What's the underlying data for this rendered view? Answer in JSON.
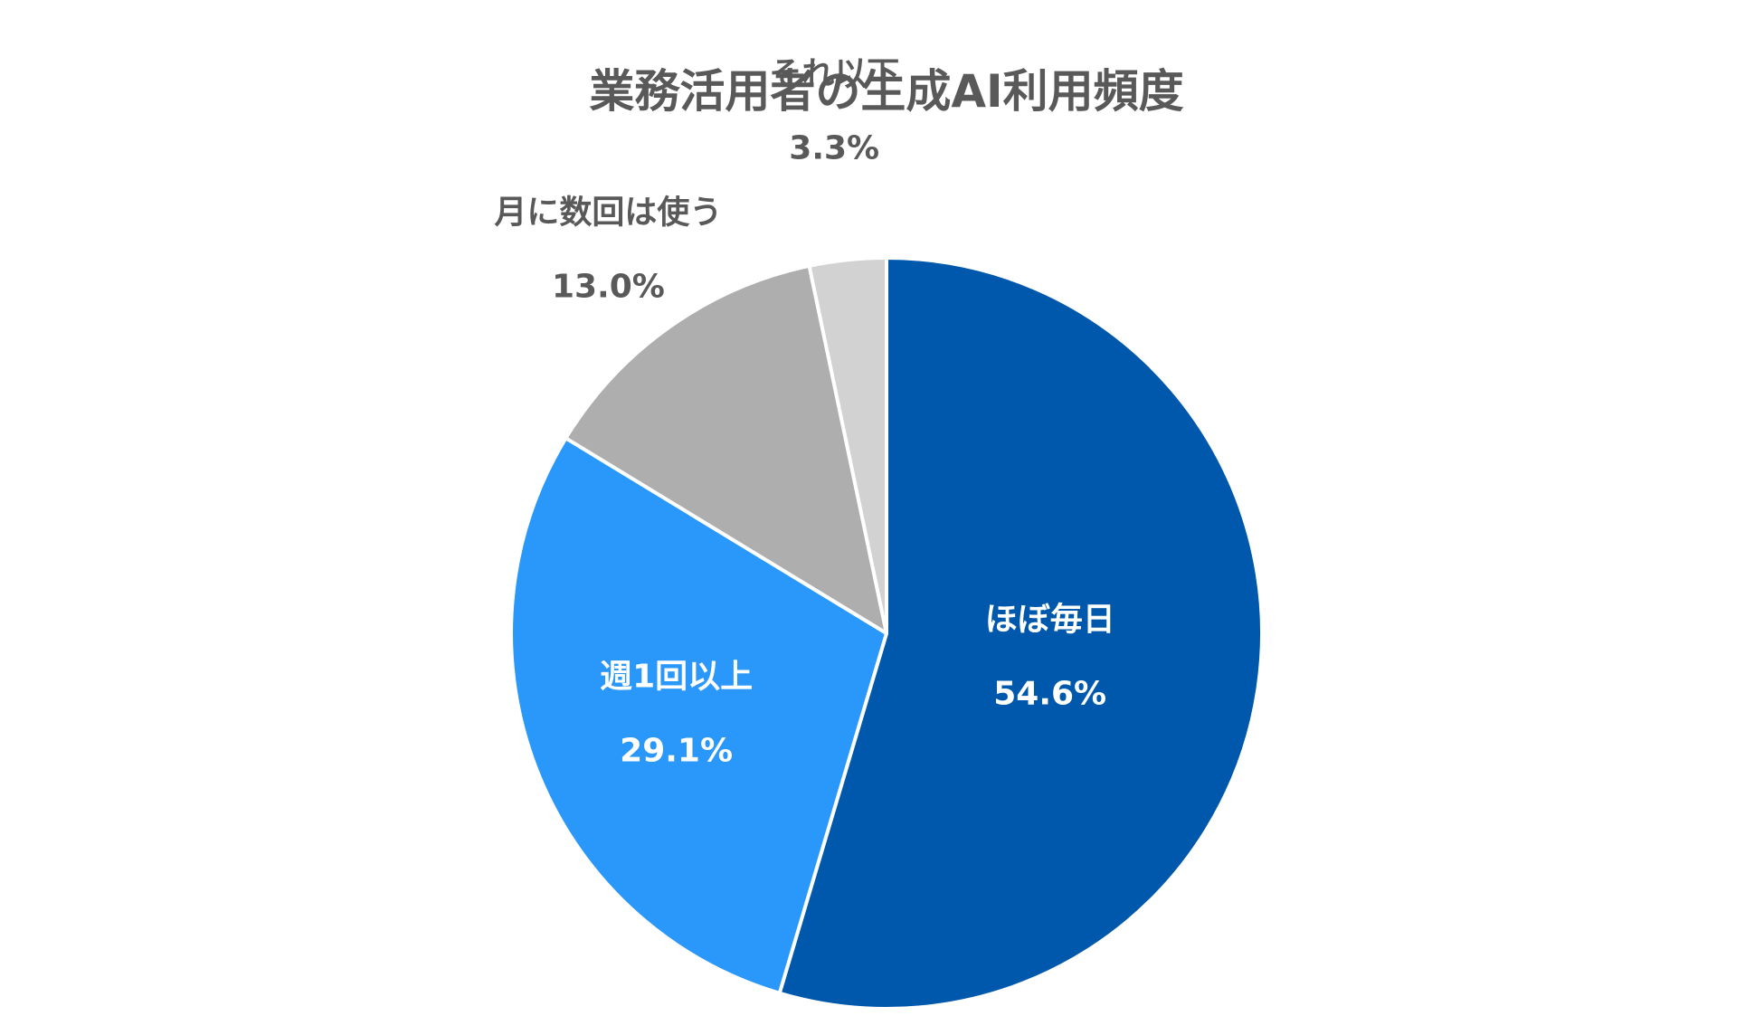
{
  "chart_data": {
    "type": "pie",
    "title": "業務活用者の生成AI利用頻度",
    "categories": [
      "ほぼ毎日",
      "週1回以上",
      "月に数回は使う",
      "それ以下"
    ],
    "values": [
      54.6,
      29.1,
      13.0,
      3.3
    ],
    "value_labels": [
      "54.6%",
      "29.1%",
      "13.0%",
      "3.3%"
    ],
    "colors": [
      "#0058AC",
      "#2A98FB",
      "#AEAEAE",
      "#D2D2D2"
    ],
    "label_colors": [
      "#FFFFFF",
      "#FFFFFF",
      "#595959",
      "#595959"
    ],
    "start": "12 o'clock",
    "direction": "clockwise",
    "legend": "none"
  }
}
